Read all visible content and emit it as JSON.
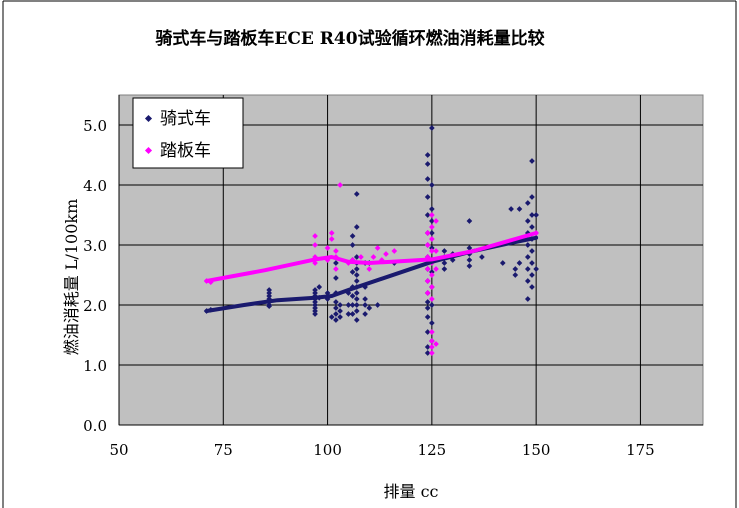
{
  "chart_data": {
    "type": "scatter",
    "title": "骑式车与踏板车ECE R40试验循环燃油消耗量比较",
    "xlabel": "排量 cc",
    "ylabel": "燃油消耗量 L/100km",
    "xlim": [
      50,
      190
    ],
    "ylim": [
      0,
      5.5
    ],
    "xticks": [
      "50",
      "75",
      "100",
      "125",
      "150",
      "175"
    ],
    "yticks": [
      "0.0",
      "1.0",
      "2.0",
      "3.0",
      "4.0",
      "5.0"
    ],
    "grid": true,
    "legend_position": "top-left",
    "series": [
      {
        "name": "骑式车",
        "color": "#1a1a6e",
        "points": [
          [
            71,
            1.9
          ],
          [
            72,
            1.92
          ],
          [
            86,
            2.0
          ],
          [
            86,
            2.05
          ],
          [
            86,
            2.1
          ],
          [
            86,
            2.15
          ],
          [
            86,
            2.2
          ],
          [
            86,
            2.25
          ],
          [
            86,
            1.98
          ],
          [
            97,
            1.85
          ],
          [
            97,
            1.9
          ],
          [
            97,
            1.95
          ],
          [
            97,
            2.0
          ],
          [
            97,
            2.05
          ],
          [
            97,
            2.1
          ],
          [
            97,
            2.15
          ],
          [
            97,
            2.2
          ],
          [
            97,
            2.25
          ],
          [
            98,
            2.12
          ],
          [
            98,
            2.3
          ],
          [
            100,
            2.1
          ],
          [
            100,
            2.2
          ],
          [
            101,
            1.8
          ],
          [
            102,
            1.75
          ],
          [
            102,
            1.85
          ],
          [
            102,
            1.95
          ],
          [
            102,
            2.05
          ],
          [
            102,
            2.2
          ],
          [
            102,
            2.45
          ],
          [
            102,
            2.7
          ],
          [
            103,
            1.8
          ],
          [
            103,
            1.9
          ],
          [
            103,
            2.0
          ],
          [
            105,
            1.85
          ],
          [
            105,
            2.0
          ],
          [
            105,
            2.2
          ],
          [
            106,
            1.85
          ],
          [
            106,
            2.0
          ],
          [
            106,
            2.15
          ],
          [
            106,
            2.3
          ],
          [
            106,
            2.55
          ],
          [
            106,
            2.75
          ],
          [
            106,
            3.0
          ],
          [
            106,
            3.15
          ],
          [
            107,
            1.75
          ],
          [
            107,
            1.9
          ],
          [
            107,
            2.0
          ],
          [
            107,
            2.1
          ],
          [
            107,
            2.2
          ],
          [
            107,
            2.3
          ],
          [
            107,
            2.4
          ],
          [
            107,
            2.5
          ],
          [
            107,
            2.6
          ],
          [
            107,
            2.7
          ],
          [
            107,
            2.8
          ],
          [
            107,
            3.3
          ],
          [
            107,
            3.85
          ],
          [
            109,
            1.85
          ],
          [
            109,
            2.0
          ],
          [
            109,
            2.1
          ],
          [
            109,
            2.3
          ],
          [
            109,
            2.7
          ],
          [
            110,
            1.95
          ],
          [
            110,
            2.7
          ],
          [
            112,
            2.0
          ],
          [
            116,
            2.7
          ],
          [
            124,
            1.2
          ],
          [
            124,
            1.3
          ],
          [
            124,
            1.55
          ],
          [
            124,
            1.8
          ],
          [
            124,
            1.95
          ],
          [
            124,
            2.05
          ],
          [
            124,
            2.2
          ],
          [
            124,
            2.4
          ],
          [
            124,
            2.6
          ],
          [
            124,
            2.8
          ],
          [
            124,
            3.0
          ],
          [
            124,
            3.2
          ],
          [
            124,
            3.5
          ],
          [
            124,
            3.8
          ],
          [
            124,
            4.1
          ],
          [
            124,
            4.35
          ],
          [
            124,
            4.5
          ],
          [
            125,
            1.4
          ],
          [
            125,
            1.7
          ],
          [
            125,
            2.0
          ],
          [
            125,
            2.3
          ],
          [
            125,
            2.55
          ],
          [
            125,
            2.75
          ],
          [
            125,
            2.95
          ],
          [
            125,
            3.2
          ],
          [
            125,
            3.4
          ],
          [
            125,
            3.6
          ],
          [
            125,
            4.0
          ],
          [
            125,
            4.95
          ],
          [
            128,
            2.6
          ],
          [
            128,
            2.7
          ],
          [
            128,
            2.8
          ],
          [
            128,
            2.9
          ],
          [
            130,
            2.75
          ],
          [
            130,
            2.85
          ],
          [
            134,
            2.65
          ],
          [
            134,
            2.75
          ],
          [
            134,
            2.85
          ],
          [
            134,
            2.95
          ],
          [
            134,
            3.4
          ],
          [
            137,
            2.8
          ],
          [
            142,
            2.7
          ],
          [
            144,
            3.6
          ],
          [
            145,
            2.5
          ],
          [
            145,
            2.6
          ],
          [
            146,
            2.7
          ],
          [
            146,
            3.6
          ],
          [
            148,
            2.4
          ],
          [
            148,
            2.6
          ],
          [
            148,
            2.8
          ],
          [
            148,
            3.0
          ],
          [
            148,
            3.2
          ],
          [
            148,
            3.4
          ],
          [
            148,
            3.7
          ],
          [
            148,
            2.1
          ],
          [
            149,
            2.3
          ],
          [
            149,
            2.5
          ],
          [
            149,
            2.7
          ],
          [
            149,
            2.9
          ],
          [
            149,
            3.1
          ],
          [
            149,
            3.3
          ],
          [
            149,
            3.5
          ],
          [
            149,
            3.8
          ],
          [
            149,
            4.4
          ],
          [
            150,
            2.6
          ],
          [
            150,
            3.5
          ]
        ],
        "trend": [
          [
            71,
            1.9
          ],
          [
            80,
            2.0
          ],
          [
            88,
            2.08
          ],
          [
            97,
            2.12
          ],
          [
            101,
            2.15
          ],
          [
            105,
            2.25
          ],
          [
            125,
            2.72
          ],
          [
            135,
            2.9
          ],
          [
            145,
            3.05
          ],
          [
            150,
            3.12
          ]
        ]
      },
      {
        "name": "踏板车",
        "color": "#ff00ff",
        "points": [
          [
            71,
            2.4
          ],
          [
            72,
            2.38
          ],
          [
            97,
            2.7
          ],
          [
            97,
            2.8
          ],
          [
            97,
            3.0
          ],
          [
            97,
            3.15
          ],
          [
            100,
            2.75
          ],
          [
            100,
            2.95
          ],
          [
            101,
            3.1
          ],
          [
            101,
            3.2
          ],
          [
            102,
            2.6
          ],
          [
            102,
            2.8
          ],
          [
            102,
            2.9
          ],
          [
            103,
            4.0
          ],
          [
            105,
            2.7
          ],
          [
            106,
            2.75
          ],
          [
            108,
            2.8
          ],
          [
            110,
            2.6
          ],
          [
            111,
            2.8
          ],
          [
            112,
            2.95
          ],
          [
            113,
            2.75
          ],
          [
            114,
            2.85
          ],
          [
            116,
            2.9
          ],
          [
            124,
            2.2
          ],
          [
            124,
            2.4
          ],
          [
            124,
            2.6
          ],
          [
            124,
            2.8
          ],
          [
            124,
            3.0
          ],
          [
            124,
            3.2
          ],
          [
            125,
            1.2
          ],
          [
            125,
            1.3
          ],
          [
            125,
            1.4
          ],
          [
            125,
            1.55
          ],
          [
            125,
            2.1
          ],
          [
            125,
            2.3
          ],
          [
            125,
            2.5
          ],
          [
            125,
            2.7
          ],
          [
            125,
            2.9
          ],
          [
            125,
            3.1
          ],
          [
            125,
            3.3
          ],
          [
            125,
            3.5
          ],
          [
            126,
            1.35
          ],
          [
            126,
            2.6
          ],
          [
            126,
            2.9
          ],
          [
            126,
            3.4
          ],
          [
            148,
            3.1
          ],
          [
            150,
            3.2
          ]
        ],
        "trend": [
          [
            71,
            2.4
          ],
          [
            85,
            2.58
          ],
          [
            97,
            2.76
          ],
          [
            101,
            2.8
          ],
          [
            105,
            2.72
          ],
          [
            110,
            2.7
          ],
          [
            125,
            2.76
          ],
          [
            135,
            2.9
          ],
          [
            145,
            3.1
          ],
          [
            150,
            3.2
          ]
        ]
      }
    ]
  }
}
